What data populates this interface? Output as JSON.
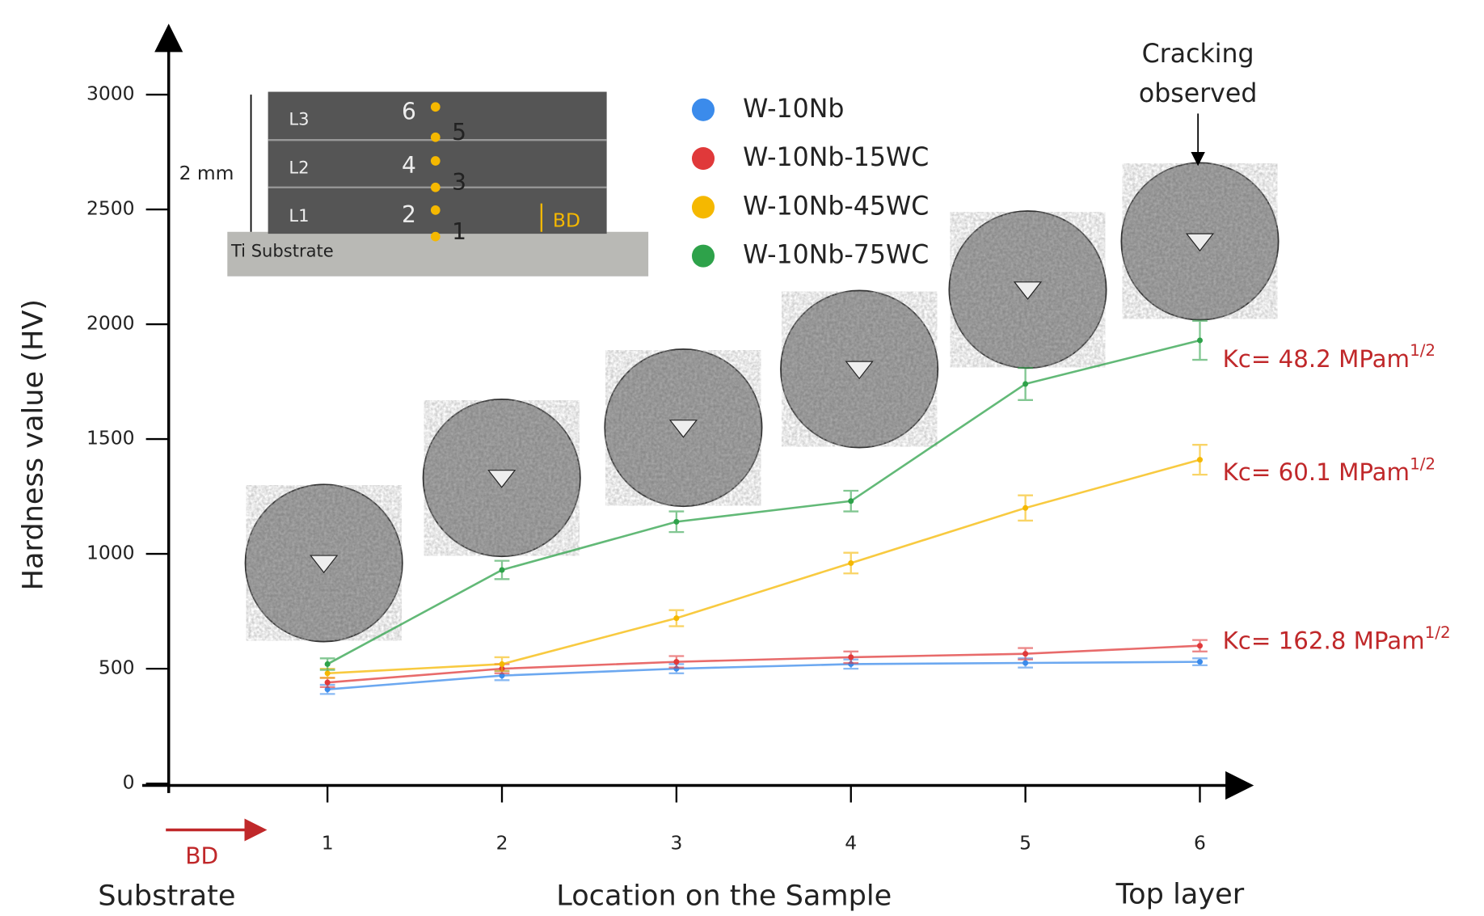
{
  "chart_data": {
    "type": "line",
    "y_label": "Hardness value (HV)",
    "x_label": "Location on the Sample",
    "x_start_label": "Substrate",
    "x_end_label": "Top layer",
    "direction_label": "BD",
    "x": [
      1,
      2,
      3,
      4,
      5,
      6
    ],
    "xlim": [
      0.09,
      6
    ],
    "xticks": [
      1,
      2,
      3,
      4,
      5,
      6
    ],
    "ylim": [
      0,
      3000
    ],
    "yticks": [
      0,
      500,
      1000,
      1500,
      2000,
      2500,
      3000
    ],
    "legend": "upper center",
    "series": [
      {
        "name": "W-10Nb",
        "color": "#3b8beb",
        "values": [
          410,
          470,
          500,
          520,
          525,
          530
        ],
        "errors": [
          20,
          20,
          20,
          20,
          20,
          15
        ]
      },
      {
        "name": "W-10Nb-15WC",
        "color": "#e0393a",
        "values": [
          440,
          500,
          530,
          550,
          565,
          600
        ],
        "errors": [
          20,
          20,
          25,
          25,
          25,
          25
        ]
      },
      {
        "name": "W-10Nb-45WC",
        "color": "#f5b800",
        "values": [
          480,
          520,
          720,
          960,
          1200,
          1410
        ],
        "errors": [
          20,
          30,
          35,
          45,
          55,
          65
        ]
      },
      {
        "name": "W-10Nb-75WC",
        "color": "#2ea24a",
        "values": [
          520,
          930,
          1140,
          1230,
          1740,
          1930
        ],
        "errors": [
          25,
          40,
          45,
          45,
          70,
          85
        ]
      }
    ],
    "annotations": [
      {
        "text": "Kc= 48.2 MPam",
        "sup": "1/2"
      },
      {
        "text": "Kc= 60.1 MPam",
        "sup": "1/2"
      },
      {
        "text": "Kc= 162.8 MPam",
        "sup": "1/2"
      }
    ],
    "crack_note": [
      "Cracking",
      "observed"
    ],
    "inset": {
      "layers": [
        "L3",
        "L2",
        "L1"
      ],
      "points": [
        "6",
        "5",
        "4",
        "3",
        "2",
        "1"
      ],
      "scale": "2 mm",
      "direction": "BD",
      "substrate": "Ti Substrate"
    }
  }
}
